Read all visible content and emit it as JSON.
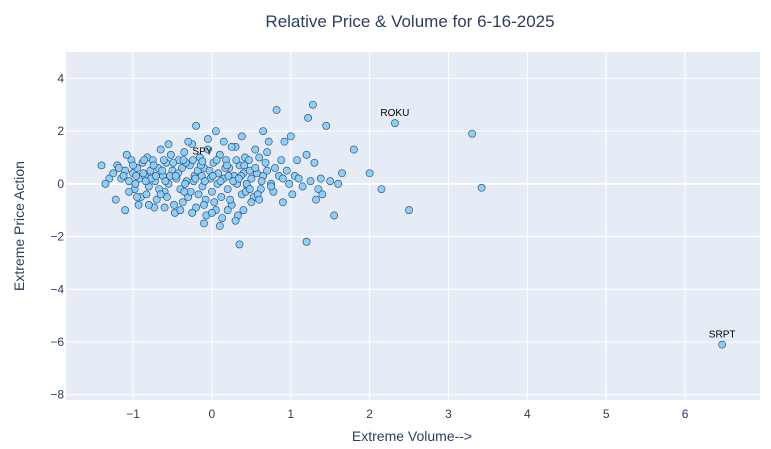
{
  "chart_data": {
    "type": "scatter",
    "title": "Relative Price & Volume for 6-16-2025",
    "xlabel": "Extreme Volume-->",
    "ylabel": "Extreme Price Action",
    "xlim": [
      -1.85,
      6.95
    ],
    "ylim": [
      -8.2,
      5.0
    ],
    "xticks": [
      -1,
      0,
      1,
      2,
      3,
      4,
      5,
      6
    ],
    "yticks": [
      -8,
      -6,
      -4,
      -2,
      0,
      2,
      4
    ],
    "grid": true,
    "legend": "none",
    "colors": {
      "plot_bg": "#e5ecf6",
      "grid": "#ffffff",
      "marker_fill": "#87cefa",
      "marker_stroke": "#2a3f5f",
      "text": "#2a3f5f"
    },
    "annotations": [
      {
        "label": "ROKU",
        "x": 2.32,
        "y": 2.3
      },
      {
        "label": "SRPT",
        "x": 6.47,
        "y": -6.1
      },
      {
        "label": "SPY",
        "x": -0.12,
        "y": 0.85
      }
    ],
    "series": [
      {
        "points": [
          [
            -1.4,
            0.7
          ],
          [
            -1.3,
            0.2
          ],
          [
            -1.25,
            0.4
          ],
          [
            -1.2,
            0.7
          ],
          [
            -1.15,
            0.2
          ],
          [
            -1.1,
            0.5
          ],
          [
            -1.05,
            0.1
          ],
          [
            -1.08,
            1.1
          ],
          [
            -1.0,
            0.4
          ],
          [
            -0.98,
            -0.2
          ],
          [
            -1.02,
            0.9
          ],
          [
            -0.95,
            0.6
          ],
          [
            -0.92,
            0.2
          ],
          [
            -0.9,
            -0.5
          ],
          [
            -0.88,
            0.8
          ],
          [
            -0.85,
            0.3
          ],
          [
            -0.82,
            1.0
          ],
          [
            -0.8,
            -0.1
          ],
          [
            -0.78,
            0.5
          ],
          [
            -0.75,
            0.9
          ],
          [
            -0.72,
            0.1
          ],
          [
            -0.7,
            -0.6
          ],
          [
            -0.68,
            0.6
          ],
          [
            -0.65,
            1.3
          ],
          [
            -0.62,
            0.3
          ],
          [
            -0.6,
            -0.3
          ],
          [
            -0.58,
            0.8
          ],
          [
            -0.55,
            0.0
          ],
          [
            -0.52,
            1.1
          ],
          [
            -0.5,
            0.5
          ],
          [
            -0.48,
            -0.8
          ],
          [
            -0.45,
            0.2
          ],
          [
            -0.42,
            0.9
          ],
          [
            -0.4,
            -0.2
          ],
          [
            -0.38,
            0.6
          ],
          [
            -0.35,
            1.2
          ],
          [
            -0.32,
            0.1
          ],
          [
            -0.3,
            -0.5
          ],
          [
            -0.28,
            0.7
          ],
          [
            -0.25,
            1.5
          ],
          [
            -0.22,
            0.3
          ],
          [
            -0.2,
            -0.9
          ],
          [
            -0.18,
            0.5
          ],
          [
            -0.15,
            1.0
          ],
          [
            -0.12,
            -0.1
          ],
          [
            -0.1,
            0.6
          ],
          [
            -0.08,
            -0.6
          ],
          [
            -0.05,
            1.3
          ],
          [
            -0.02,
            0.2
          ],
          [
            0.0,
            -0.3
          ],
          [
            0.02,
            0.8
          ],
          [
            0.05,
            -1.0
          ],
          [
            0.08,
            0.4
          ],
          [
            0.1,
            1.1
          ],
          [
            0.12,
            -0.5
          ],
          [
            0.15,
            0.2
          ],
          [
            0.18,
            0.9
          ],
          [
            0.2,
            -0.2
          ],
          [
            0.22,
            0.6
          ],
          [
            0.25,
            -0.8
          ],
          [
            0.28,
            0.3
          ],
          [
            0.3,
            1.4
          ],
          [
            0.32,
            0.0
          ],
          [
            0.35,
            0.7
          ],
          [
            0.38,
            -0.4
          ],
          [
            0.4,
            0.4
          ],
          [
            0.42,
            1.0
          ],
          [
            0.45,
            -0.1
          ],
          [
            0.48,
            0.5
          ],
          [
            0.5,
            0.2
          ],
          [
            -1.35,
            0.0
          ],
          [
            -1.22,
            -0.6
          ],
          [
            -1.12,
            0.3
          ],
          [
            -1.05,
            -0.3
          ],
          [
            -0.97,
            0.0
          ],
          [
            -0.93,
            -0.8
          ],
          [
            -0.87,
            0.4
          ],
          [
            -0.83,
            -0.4
          ],
          [
            -0.77,
            0.2
          ],
          [
            -0.73,
            -0.9
          ],
          [
            -0.67,
            -0.2
          ],
          [
            -0.63,
            0.5
          ],
          [
            -0.57,
            -0.5
          ],
          [
            -0.53,
            0.3
          ],
          [
            -0.47,
            -1.1
          ],
          [
            -0.43,
            0.4
          ],
          [
            -0.37,
            -0.7
          ],
          [
            -0.33,
            0.8
          ],
          [
            -0.27,
            -0.3
          ],
          [
            -0.23,
            0.1
          ],
          [
            -0.17,
            -0.4
          ],
          [
            -0.13,
            0.3
          ],
          [
            -0.07,
            -1.2
          ],
          [
            -0.03,
            0.5
          ],
          [
            0.03,
            -0.7
          ],
          [
            0.07,
            0.0
          ],
          [
            0.13,
            -1.3
          ],
          [
            0.17,
            0.6
          ],
          [
            0.23,
            -0.6
          ],
          [
            0.27,
            0.1
          ],
          [
            0.33,
            -1.2
          ],
          [
            0.37,
            0.3
          ],
          [
            0.43,
            -0.3
          ],
          [
            0.47,
            0.9
          ],
          [
            0.53,
            -0.5
          ],
          [
            0.57,
            0.4
          ],
          [
            0.6,
            1.0
          ],
          [
            0.62,
            -0.2
          ],
          [
            0.65,
            0.3
          ],
          [
            0.68,
            0.8
          ],
          [
            -1.18,
            0.6
          ],
          [
            -1.0,
            0.7
          ],
          [
            -0.86,
            0.9
          ],
          [
            -0.74,
            0.7
          ],
          [
            -0.61,
            0.9
          ],
          [
            -0.49,
            0.8
          ],
          [
            -0.36,
            0.9
          ],
          [
            -0.24,
            0.9
          ],
          [
            -0.14,
            0.7
          ],
          [
            0.06,
            0.9
          ],
          [
            0.19,
            0.7
          ],
          [
            0.31,
            0.9
          ],
          [
            0.41,
            0.7
          ],
          [
            -0.96,
            0.3
          ],
          [
            -0.84,
            0.1
          ],
          [
            -0.71,
            0.3
          ],
          [
            -0.59,
            0.1
          ],
          [
            -0.46,
            0.3
          ],
          [
            -0.34,
            0.0
          ],
          [
            -0.21,
            0.2
          ],
          [
            -0.09,
            0.1
          ],
          [
            0.01,
            0.3
          ],
          [
            0.11,
            0.1
          ],
          [
            0.21,
            0.3
          ],
          [
            0.34,
            0.2
          ],
          [
            0.44,
            0.0
          ],
          [
            0.55,
            0.6
          ],
          [
            0.58,
            -0.4
          ],
          [
            0.63,
            0.1
          ],
          [
            0.7,
            0.5
          ],
          [
            0.72,
            1.6
          ],
          [
            0.75,
            0.0
          ],
          [
            0.78,
            -0.3
          ],
          [
            0.8,
            0.6
          ],
          [
            0.82,
            2.8
          ],
          [
            0.85,
            0.3
          ],
          [
            0.88,
            0.9
          ],
          [
            0.9,
            -0.7
          ],
          [
            0.92,
            1.6
          ],
          [
            0.95,
            0.5
          ],
          [
            0.98,
            0.0
          ],
          [
            1.0,
            1.8
          ],
          [
            1.02,
            -0.4
          ],
          [
            1.05,
            0.3
          ],
          [
            1.08,
            0.9
          ],
          [
            1.1,
            0.2
          ],
          [
            1.15,
            -0.1
          ],
          [
            1.2,
            1.1
          ],
          [
            1.22,
            2.5
          ],
          [
            1.25,
            0.1
          ],
          [
            1.28,
            3.0
          ],
          [
            1.3,
            0.8
          ],
          [
            1.32,
            -0.6
          ],
          [
            1.35,
            -0.2
          ],
          [
            1.38,
            0.2
          ],
          [
            1.4,
            -0.4
          ],
          [
            1.45,
            2.2
          ],
          [
            1.5,
            0.1
          ],
          [
            1.55,
            -1.2
          ],
          [
            1.6,
            0.0
          ],
          [
            1.65,
            0.4
          ],
          [
            1.8,
            1.3
          ],
          [
            2.0,
            0.4
          ],
          [
            2.15,
            -0.2
          ],
          [
            2.5,
            -1.0
          ],
          [
            3.3,
            1.9
          ],
          [
            3.42,
            -0.15
          ],
          [
            1.2,
            -2.2
          ],
          [
            0.35,
            -2.3
          ],
          [
            -0.2,
            2.2
          ],
          [
            0.05,
            2.0
          ],
          [
            0.38,
            1.8
          ],
          [
            0.65,
            2.0
          ],
          [
            -0.55,
            1.5
          ],
          [
            0.15,
            1.6
          ],
          [
            -0.3,
            1.6
          ],
          [
            -0.05,
            1.7
          ],
          [
            0.25,
            1.4
          ],
          [
            0.55,
            1.3
          ],
          [
            0.7,
            1.2
          ],
          [
            -0.8,
            -0.8
          ],
          [
            -0.6,
            -0.9
          ],
          [
            -0.4,
            -1.0
          ],
          [
            -0.25,
            -1.1
          ],
          [
            -0.1,
            -1.5
          ],
          [
            0.1,
            -1.6
          ],
          [
            0.3,
            -1.4
          ],
          [
            0.4,
            -1.0
          ],
          [
            0.5,
            -0.7
          ],
          [
            -1.1,
            -1.0
          ],
          [
            -0.95,
            -0.5
          ],
          [
            -0.1,
            -0.8
          ],
          [
            0.0,
            -1.1
          ],
          [
            0.2,
            -1.0
          ],
          [
            -0.65,
            -0.4
          ],
          [
            -0.35,
            -0.3
          ],
          [
            0.48,
            -0.2
          ],
          [
            0.6,
            -0.6
          ],
          [
            0.75,
            -0.1
          ],
          [
            0.9,
            0.2
          ]
        ]
      }
    ]
  }
}
